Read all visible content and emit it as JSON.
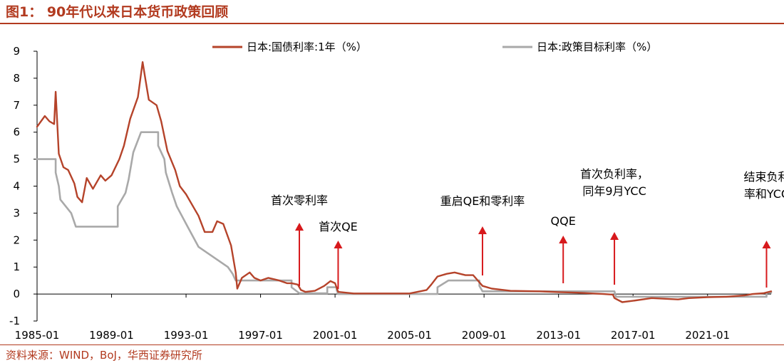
{
  "figure": {
    "title": "图1：  90年代以来日本货币政策回顾",
    "source": "资料来源：WIND，BoJ，华西证券研究所"
  },
  "chart_data": {
    "type": "line",
    "title": "",
    "xlabel": "",
    "ylabel": "",
    "ylim": [
      -1,
      9
    ],
    "xlim": [
      "1985-01",
      "2024-06"
    ],
    "grid": false,
    "legend_position": "top",
    "y_ticks": [
      -1,
      0,
      1,
      2,
      3,
      4,
      5,
      6,
      7,
      8,
      9
    ],
    "x_ticks": [
      "1985-01",
      "1989-01",
      "1993-01",
      "1997-01",
      "2001-01",
      "2005-01",
      "2009-01",
      "2013-01",
      "2017-01",
      "2021-01"
    ],
    "colors": {
      "jgb": "#b5432a",
      "policy": "#a9a9a9",
      "arrow": "#d7191c",
      "axis": "#000000"
    },
    "series": [
      {
        "name": "日本:国债利率:1年（%）",
        "key": "jgb",
        "points": [
          [
            "1985-01",
            6.2
          ],
          [
            "1985-06",
            6.6
          ],
          [
            "1985-09",
            6.4
          ],
          [
            "1985-12",
            6.3
          ],
          [
            "1986-01",
            7.5
          ],
          [
            "1986-03",
            5.2
          ],
          [
            "1986-06",
            4.7
          ],
          [
            "1986-09",
            4.6
          ],
          [
            "1987-01",
            4.1
          ],
          [
            "1987-03",
            3.6
          ],
          [
            "1987-06",
            3.4
          ],
          [
            "1987-09",
            4.3
          ],
          [
            "1988-01",
            3.9
          ],
          [
            "1988-06",
            4.4
          ],
          [
            "1988-09",
            4.2
          ],
          [
            "1989-01",
            4.4
          ],
          [
            "1989-06",
            5.0
          ],
          [
            "1989-09",
            5.5
          ],
          [
            "1990-01",
            6.5
          ],
          [
            "1990-06",
            7.3
          ],
          [
            "1990-09",
            8.6
          ],
          [
            "1990-11",
            7.9
          ],
          [
            "1991-01",
            7.2
          ],
          [
            "1991-06",
            7.0
          ],
          [
            "1991-09",
            6.4
          ],
          [
            "1992-01",
            5.3
          ],
          [
            "1992-06",
            4.6
          ],
          [
            "1992-09",
            4.0
          ],
          [
            "1993-01",
            3.7
          ],
          [
            "1993-06",
            3.2
          ],
          [
            "1993-09",
            2.9
          ],
          [
            "1994-01",
            2.3
          ],
          [
            "1994-06",
            2.3
          ],
          [
            "1994-09",
            2.7
          ],
          [
            "1995-01",
            2.6
          ],
          [
            "1995-06",
            1.8
          ],
          [
            "1995-09",
            0.8
          ],
          [
            "1995-10",
            0.2
          ],
          [
            "1996-01",
            0.6
          ],
          [
            "1996-06",
            0.8
          ],
          [
            "1996-09",
            0.6
          ],
          [
            "1997-01",
            0.5
          ],
          [
            "1997-06",
            0.6
          ],
          [
            "1998-01",
            0.5
          ],
          [
            "1998-06",
            0.4
          ],
          [
            "1998-09",
            0.4
          ],
          [
            "1999-01",
            0.35
          ],
          [
            "1999-03",
            0.15
          ],
          [
            "1999-06",
            0.08
          ],
          [
            "1999-12",
            0.12
          ],
          [
            "2000-06",
            0.3
          ],
          [
            "2000-10",
            0.48
          ],
          [
            "2001-01",
            0.4
          ],
          [
            "2001-03",
            0.08
          ],
          [
            "2002-01",
            0.02
          ],
          [
            "2004-01",
            0.02
          ],
          [
            "2005-01",
            0.02
          ],
          [
            "2005-12",
            0.15
          ],
          [
            "2006-03",
            0.35
          ],
          [
            "2006-07",
            0.65
          ],
          [
            "2007-01",
            0.75
          ],
          [
            "2007-06",
            0.8
          ],
          [
            "2008-01",
            0.7
          ],
          [
            "2008-06",
            0.7
          ],
          [
            "2008-12",
            0.3
          ],
          [
            "2009-06",
            0.2
          ],
          [
            "2010-06",
            0.12
          ],
          [
            "2012-01",
            0.1
          ],
          [
            "2013-01",
            0.07
          ],
          [
            "2014-01",
            0.05
          ],
          [
            "2015-06",
            0.0
          ],
          [
            "2015-12",
            -0.02
          ],
          [
            "2016-01",
            -0.15
          ],
          [
            "2016-06",
            -0.3
          ],
          [
            "2017-01",
            -0.25
          ],
          [
            "2018-01",
            -0.15
          ],
          [
            "2019-06",
            -0.2
          ],
          [
            "2020-01",
            -0.15
          ],
          [
            "2021-01",
            -0.12
          ],
          [
            "2022-01",
            -0.1
          ],
          [
            "2023-01",
            -0.05
          ],
          [
            "2023-06",
            0.0
          ],
          [
            "2024-01",
            0.03
          ],
          [
            "2024-06",
            0.1
          ]
        ]
      },
      {
        "name": "日本:政策目标利率（%）",
        "key": "policy",
        "points": [
          [
            "1985-01",
            5.0
          ],
          [
            "1986-01",
            5.0
          ],
          [
            "1986-01",
            4.5
          ],
          [
            "1986-03",
            4.0
          ],
          [
            "1986-04",
            3.5
          ],
          [
            "1986-11",
            3.0
          ],
          [
            "1987-02",
            2.5
          ],
          [
            "1989-05",
            2.5
          ],
          [
            "1989-05",
            3.25
          ],
          [
            "1989-10",
            3.75
          ],
          [
            "1989-12",
            4.25
          ],
          [
            "1990-03",
            5.25
          ],
          [
            "1990-08",
            6.0
          ],
          [
            "1991-07",
            6.0
          ],
          [
            "1991-07",
            5.5
          ],
          [
            "1991-11",
            5.0
          ],
          [
            "1991-12",
            4.5
          ],
          [
            "1992-04",
            3.75
          ],
          [
            "1992-07",
            3.25
          ],
          [
            "1993-02",
            2.5
          ],
          [
            "1993-09",
            1.75
          ],
          [
            "1995-04",
            1.0
          ],
          [
            "1995-07",
            0.75
          ],
          [
            "1995-09",
            0.5
          ],
          [
            "1998-09",
            0.5
          ],
          [
            "1998-09",
            0.25
          ],
          [
            "1999-02",
            0.03
          ],
          [
            "2000-08",
            0.03
          ],
          [
            "2000-08",
            0.25
          ],
          [
            "2001-02",
            0.25
          ],
          [
            "2001-02",
            0.15
          ],
          [
            "2001-03",
            0.0
          ],
          [
            "2006-07",
            0.0
          ],
          [
            "2006-07",
            0.25
          ],
          [
            "2007-02",
            0.5
          ],
          [
            "2008-10",
            0.5
          ],
          [
            "2008-10",
            0.3
          ],
          [
            "2008-12",
            0.1
          ],
          [
            "2016-01",
            0.1
          ],
          [
            "2016-02",
            -0.1
          ],
          [
            "2024-03",
            -0.1
          ],
          [
            "2024-03",
            0.05
          ],
          [
            "2024-06",
            0.05
          ]
        ]
      }
    ],
    "annotations": [
      {
        "lines": [
          "首次零利率"
        ],
        "date": "1999-02"
      },
      {
        "lines": [
          "首次QE"
        ],
        "date": "2001-03"
      },
      {
        "lines": [
          "重启QE和零利率"
        ],
        "date": "2008-12"
      },
      {
        "lines": [
          "QQE"
        ],
        "date": "2013-04"
      },
      {
        "lines": [
          "首次负利率，",
          "同年9月YCC"
        ],
        "date": "2016-01"
      },
      {
        "lines": [
          "结束负利",
          "率和YCC"
        ],
        "date": "2024-03"
      }
    ]
  }
}
